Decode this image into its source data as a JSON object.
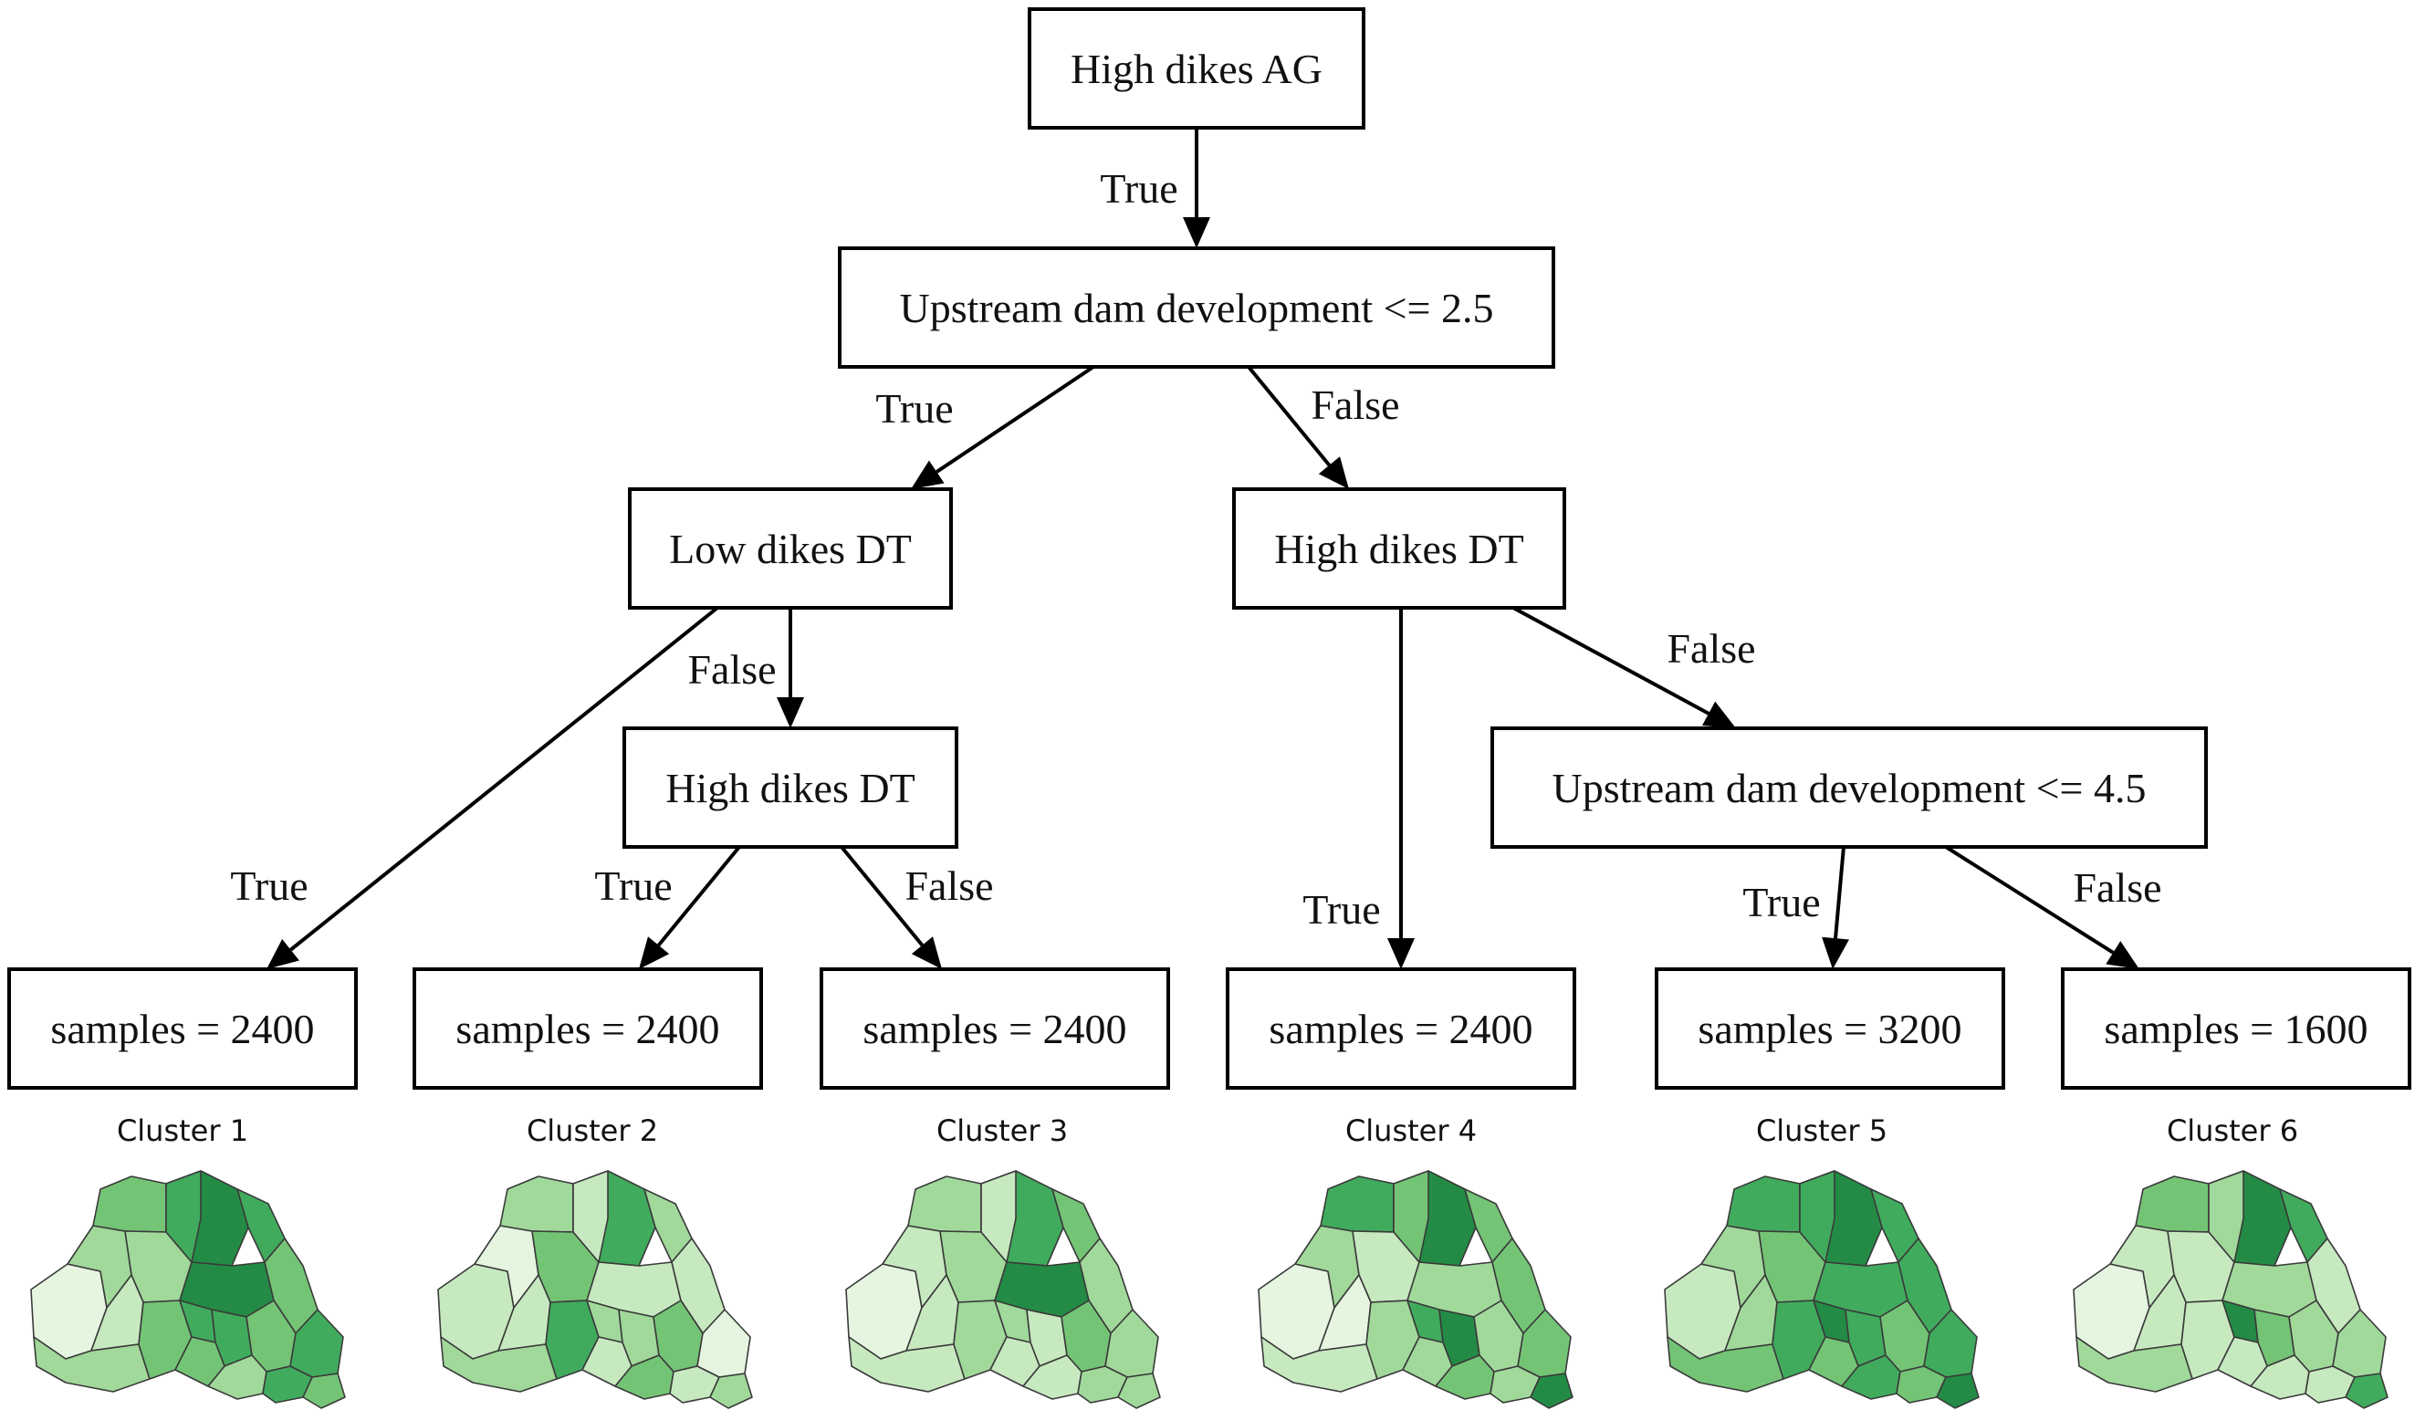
{
  "diagram": {
    "nodes": [
      {
        "id": "root",
        "label": "High dikes AG"
      },
      {
        "id": "dam25",
        "label": "Upstream dam development <= 2.5"
      },
      {
        "id": "lowdt",
        "label": "Low dikes DT"
      },
      {
        "id": "highdt_r",
        "label": "High dikes DT"
      },
      {
        "id": "highdt_l",
        "label": "High dikes DT"
      },
      {
        "id": "dam45",
        "label": "Upstream dam development <= 4.5"
      },
      {
        "id": "leaf1",
        "label": "samples = 2400"
      },
      {
        "id": "leaf2",
        "label": "samples = 2400"
      },
      {
        "id": "leaf3",
        "label": "samples = 2400"
      },
      {
        "id": "leaf4",
        "label": "samples = 2400"
      },
      {
        "id": "leaf5",
        "label": "samples = 3200"
      },
      {
        "id": "leaf6",
        "label": "samples = 1600"
      }
    ],
    "edges": [
      {
        "from": "root",
        "to": "dam25",
        "label": "True"
      },
      {
        "from": "dam25",
        "to": "lowdt",
        "label": "True"
      },
      {
        "from": "dam25",
        "to": "highdt_r",
        "label": "False"
      },
      {
        "from": "lowdt",
        "to": "leaf1",
        "label": "True"
      },
      {
        "from": "lowdt",
        "to": "highdt_l",
        "label": "False"
      },
      {
        "from": "highdt_l",
        "to": "leaf2",
        "label": "True"
      },
      {
        "from": "highdt_l",
        "to": "leaf3",
        "label": "False"
      },
      {
        "from": "highdt_r",
        "to": "leaf4",
        "label": "True"
      },
      {
        "from": "highdt_r",
        "to": "dam45",
        "label": "False"
      },
      {
        "from": "dam45",
        "to": "leaf5",
        "label": "True"
      },
      {
        "from": "dam45",
        "to": "leaf6",
        "label": "False"
      }
    ]
  },
  "clusters": [
    {
      "title": "Cluster 1",
      "leaf": "leaf1",
      "shades": [
        1,
        3,
        4,
        6,
        5,
        3,
        2,
        3,
        4,
        6,
        4,
        5,
        5,
        4,
        5,
        4,
        3,
        5,
        4,
        5
      ]
    },
    {
      "title": "Cluster 2",
      "leaf": "leaf2",
      "shades": [
        2,
        1,
        3,
        5,
        3,
        4,
        2,
        3,
        5,
        2,
        2,
        3,
        3,
        4,
        1,
        2,
        4,
        2,
        3,
        2
      ]
    },
    {
      "title": "Cluster 3",
      "leaf": "leaf3",
      "shades": [
        1,
        2,
        3,
        5,
        4,
        3,
        2,
        2,
        3,
        6,
        3,
        3,
        2,
        4,
        3,
        2,
        2,
        3,
        3,
        2
      ]
    },
    {
      "title": "Cluster 4",
      "leaf": "leaf4",
      "shades": [
        1,
        3,
        5,
        6,
        4,
        2,
        1,
        2,
        3,
        3,
        4,
        5,
        6,
        3,
        4,
        3,
        4,
        3,
        6,
        4
      ]
    },
    {
      "title": "Cluster 5",
      "leaf": "leaf5",
      "shades": [
        2,
        3,
        5,
        6,
        5,
        4,
        3,
        4,
        5,
        5,
        5,
        6,
        5,
        4,
        5,
        4,
        5,
        4,
        6,
        5
      ]
    },
    {
      "title": "Cluster 6",
      "leaf": "leaf6",
      "shades": [
        1,
        2,
        4,
        6,
        5,
        2,
        2,
        3,
        2,
        3,
        2,
        6,
        4,
        3,
        3,
        2,
        2,
        2,
        5,
        3
      ]
    }
  ],
  "colors": {
    "palette": [
      "#f7fcf5",
      "#e5f5e0",
      "#c7e9c0",
      "#a1d99b",
      "#74c476",
      "#41ab5d",
      "#238b45",
      "#005a32"
    ],
    "node_border": "#000000",
    "edge": "#000000"
  }
}
